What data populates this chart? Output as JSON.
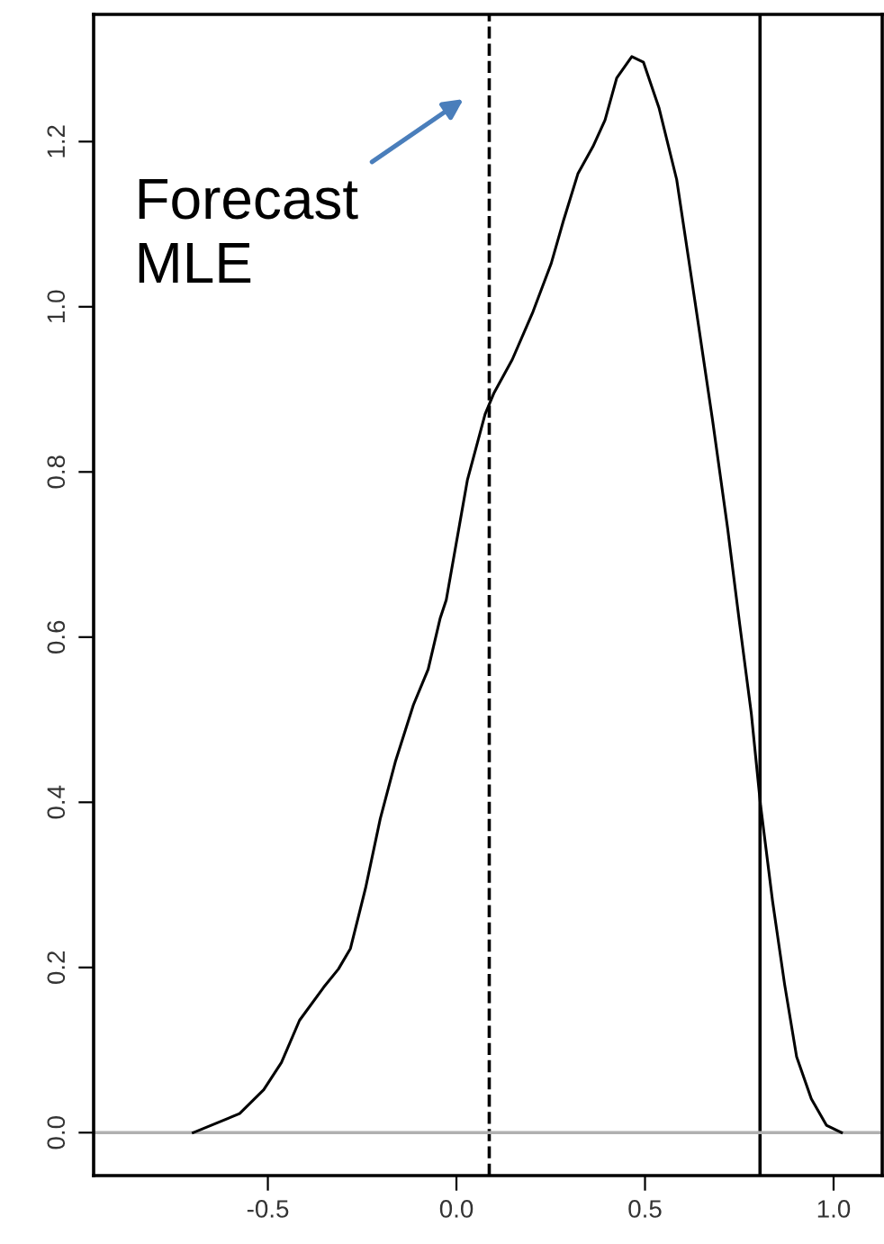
{
  "chart_data": {
    "type": "line",
    "x": [
      -0.698,
      -0.575,
      -0.511,
      -0.464,
      -0.416,
      -0.352,
      -0.313,
      -0.281,
      -0.241,
      -0.202,
      -0.162,
      -0.114,
      -0.075,
      -0.043,
      -0.027,
      0.029,
      0.076,
      0.1,
      0.148,
      0.203,
      0.251,
      0.283,
      0.322,
      0.362,
      0.394,
      0.425,
      0.465,
      0.496,
      0.537,
      0.584,
      0.632,
      0.679,
      0.719,
      0.751,
      0.782,
      0.806,
      0.838,
      0.87,
      0.902,
      0.941,
      0.981,
      1.021
    ],
    "series": [
      {
        "color": "#000000",
        "values": [
          0.0,
          0.023,
          0.052,
          0.085,
          0.136,
          0.176,
          0.198,
          0.223,
          0.296,
          0.38,
          0.449,
          0.518,
          0.561,
          0.623,
          0.645,
          0.79,
          0.87,
          0.896,
          0.936,
          0.994,
          1.052,
          1.103,
          1.161,
          1.194,
          1.226,
          1.277,
          1.303,
          1.296,
          1.241,
          1.154,
          1.008,
          0.863,
          0.732,
          0.616,
          0.507,
          0.398,
          0.281,
          0.18,
          0.092,
          0.041,
          0.009,
          0.0
        ]
      }
    ],
    "xlim": [
      -0.962,
      1.129
    ],
    "ylim": [
      -0.052,
      1.354
    ],
    "xticks": [
      -0.5,
      {
        "value": 0,
        "label": "0.0"
      },
      0.5,
      {
        "value": 1,
        "label": "1.0"
      }
    ],
    "yticks": [
      {
        "value": 0,
        "label": "0.0"
      },
      0.2,
      0.4,
      0.6,
      0.8,
      {
        "value": 1,
        "label": "1.0"
      },
      1.2
    ],
    "ref_lines": [
      {
        "axis": "x",
        "value": 0.087,
        "line_style": "dashed",
        "color": "#000000"
      },
      {
        "axis": "x",
        "value": 0.805,
        "line_style": "solid",
        "color": "#000000"
      },
      {
        "axis": "y",
        "value": 0,
        "line_style": "solid",
        "color": "#b0b0b0"
      }
    ],
    "annotations": [
      "Forecast\nMLE"
    ],
    "grid": false,
    "legend": false,
    "marker": "none",
    "line_style": "solid"
  }
}
